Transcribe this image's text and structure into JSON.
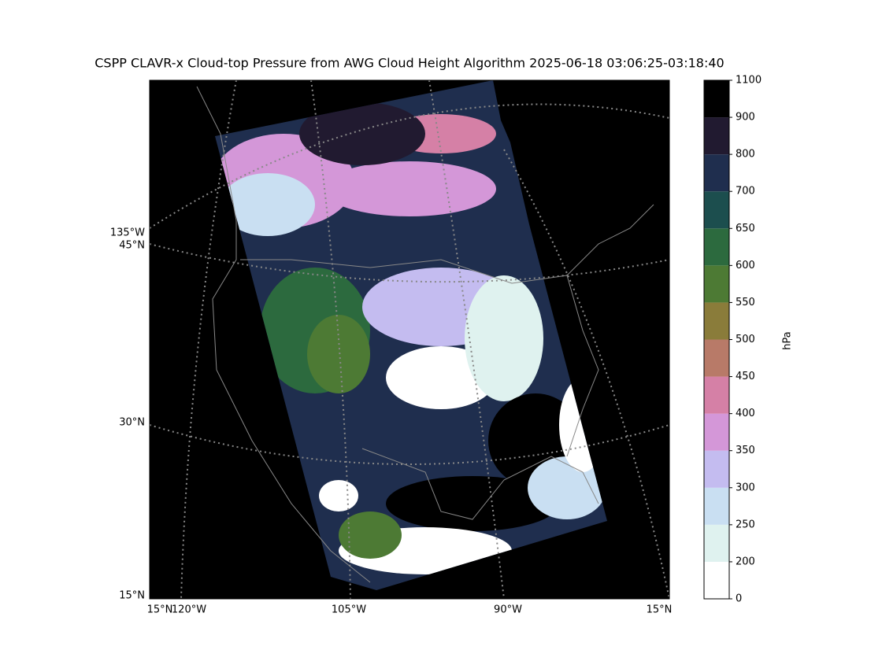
{
  "title": "CSPP CLAVR-x Cloud-top Pressure from AWG Cloud Height Algorithm 2025-06-18 03:06:25-03:18:40",
  "colorbar": {
    "label": "hPa",
    "ticks": [
      0,
      200,
      250,
      300,
      350,
      400,
      450,
      500,
      550,
      600,
      650,
      700,
      800,
      900,
      1100
    ],
    "colors": [
      "#ffffff",
      "#dff2ef",
      "#c9dff2",
      "#c4bcf0",
      "#d497d8",
      "#d580a6",
      "#b87a68",
      "#8a7c3a",
      "#4d7a34",
      "#2c6a3e",
      "#1c4e4e",
      "#1f2e4e",
      "#211a30",
      "#000000"
    ]
  },
  "left_labels": [
    "135°W",
    "45°N",
    "30°N",
    "15°N"
  ],
  "bottom_labels": [
    "15°N",
    "120°W",
    "105°W",
    "90°W",
    "15°N"
  ]
}
